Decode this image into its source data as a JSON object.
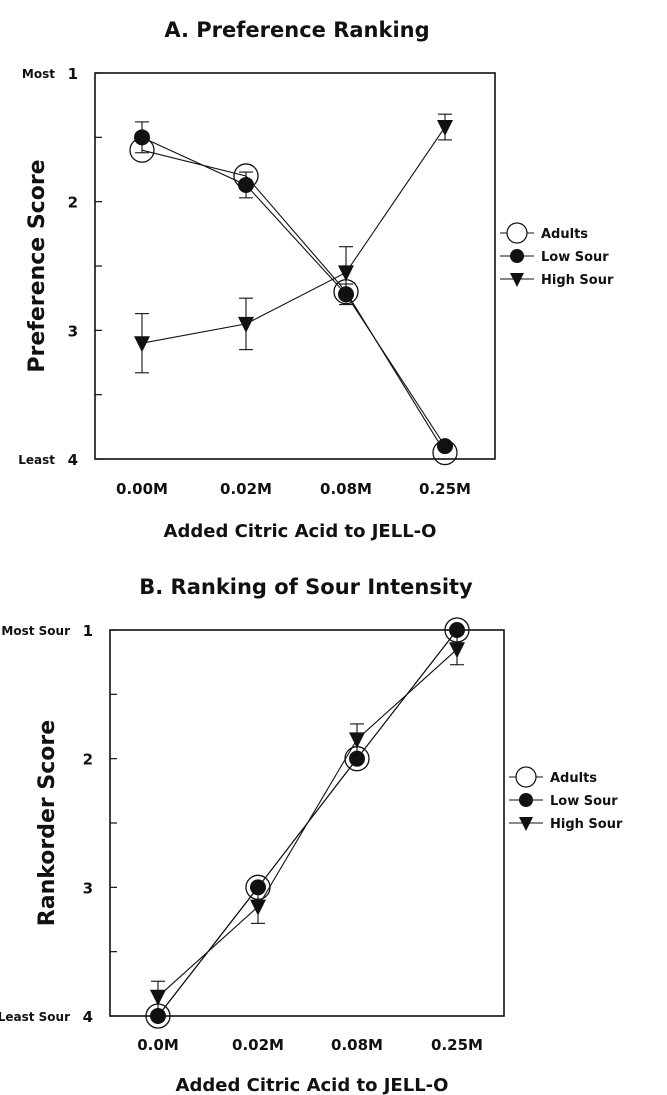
{
  "chart_data": [
    {
      "panel": "A",
      "type": "line",
      "title": "A.  Preference Ranking",
      "xlabel": "Added Citric Acid to JELL-O",
      "ylabel": "Preference Score",
      "categories": [
        "0.00M",
        "0.02M",
        "0.08M",
        "0.25M"
      ],
      "y_ticks": [
        "1",
        "2",
        "3",
        "4"
      ],
      "y_top_label": "Most",
      "y_bottom_label": "Least",
      "ylim": [
        1,
        4
      ],
      "y_inverted": true,
      "legend_position": "right",
      "series": [
        {
          "name": "Adults",
          "marker": "open-circle",
          "values": [
            1.6,
            1.8,
            2.7,
            3.95
          ],
          "err": [
            0,
            0,
            0,
            0
          ]
        },
        {
          "name": "Low Sour",
          "marker": "filled-circle",
          "values": [
            1.5,
            1.87,
            2.72,
            3.9
          ],
          "err": [
            0.12,
            0.1,
            0.08,
            0
          ]
        },
        {
          "name": "High Sour",
          "marker": "filled-triangle",
          "values": [
            3.1,
            2.95,
            2.55,
            1.42
          ],
          "err": [
            0.23,
            0.2,
            0.2,
            0.1
          ]
        }
      ]
    },
    {
      "panel": "B",
      "type": "line",
      "title": "B. Ranking of Sour Intensity",
      "xlabel": "Added Citric Acid to JELL-O",
      "ylabel": "Rankorder Score",
      "categories": [
        "0.0M",
        "0.02M",
        "0.08M",
        "0.25M"
      ],
      "y_ticks": [
        "1",
        "2",
        "3",
        "4"
      ],
      "y_top_label": "Most Sour",
      "y_bottom_label": "Least Sour",
      "ylim": [
        1,
        4
      ],
      "y_inverted": true,
      "legend_position": "right",
      "series": [
        {
          "name": "Adults",
          "marker": "open-circle",
          "values": [
            4.0,
            3.0,
            2.0,
            1.0
          ],
          "err": [
            0,
            0,
            0,
            0
          ]
        },
        {
          "name": "Low Sour",
          "marker": "filled-circle",
          "values": [
            4.0,
            3.0,
            2.0,
            1.0
          ],
          "err": [
            0,
            0,
            0,
            0
          ]
        },
        {
          "name": "High Sour",
          "marker": "filled-triangle",
          "values": [
            3.85,
            3.15,
            1.85,
            1.15
          ],
          "err": [
            0.12,
            0.13,
            0.12,
            0.12
          ]
        }
      ]
    }
  ]
}
